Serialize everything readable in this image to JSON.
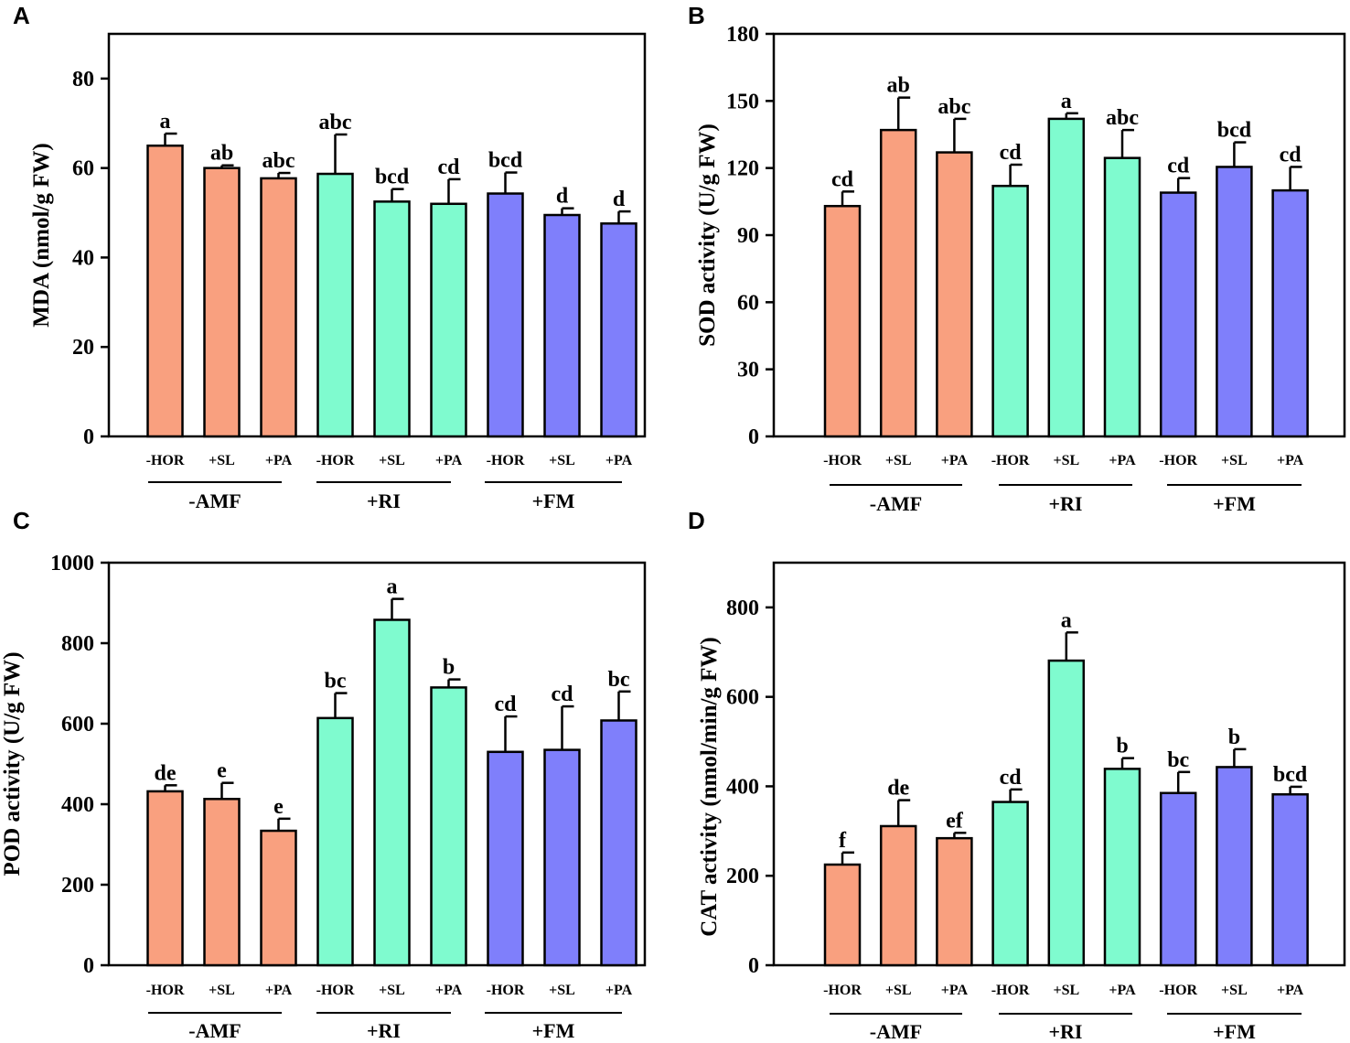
{
  "figure": {
    "colors": {
      "-AMF": "#f9a07f",
      "+RI": "#7ffbcf",
      "+FM": "#7f7ffb",
      "edge": "#000000"
    }
  },
  "chart_data": [
    {
      "panel": "A",
      "type": "bar",
      "ylabel": "MDA (nmol/g FW)",
      "ylim": [
        0,
        90
      ],
      "yticks": [
        0,
        20,
        40,
        60,
        80
      ],
      "categories": [
        "-HOR",
        "+SL",
        "+PA",
        "-HOR",
        "+SL",
        "+PA",
        "-HOR",
        "+SL",
        "+PA"
      ],
      "groups": [
        {
          "name": "-AMF",
          "members": [
            0,
            1,
            2
          ]
        },
        {
          "name": "+RI",
          "members": [
            3,
            4,
            5
          ]
        },
        {
          "name": "+FM",
          "members": [
            6,
            7,
            8
          ]
        }
      ],
      "values": [
        65,
        60,
        57.7,
        58.7,
        52.5,
        52,
        54.3,
        49.5,
        47.6
      ],
      "errors": [
        2.7,
        0.6,
        1.2,
        8.8,
        2.8,
        5.5,
        4.7,
        1.5,
        2.7
      ],
      "significance": [
        "a",
        "ab",
        "abc",
        "abc",
        "bcd",
        "cd",
        "bcd",
        "d",
        "d"
      ]
    },
    {
      "panel": "B",
      "type": "bar",
      "ylabel": "SOD activity (U/g FW)",
      "ylim": [
        0,
        180
      ],
      "yticks": [
        0,
        30,
        60,
        90,
        120,
        150,
        180
      ],
      "categories": [
        "-HOR",
        "+SL",
        "+PA",
        "-HOR",
        "+SL",
        "+PA",
        "-HOR",
        "+SL",
        "+PA"
      ],
      "groups": [
        {
          "name": "-AMF",
          "members": [
            0,
            1,
            2
          ]
        },
        {
          "name": "+RI",
          "members": [
            3,
            4,
            5
          ]
        },
        {
          "name": "+FM",
          "members": [
            6,
            7,
            8
          ]
        }
      ],
      "values": [
        103,
        137,
        127,
        112,
        142,
        124.5,
        109,
        120.5,
        110
      ],
      "errors": [
        6.5,
        14.5,
        15,
        9.5,
        2.5,
        12.5,
        6.5,
        11,
        10.5
      ],
      "significance": [
        "cd",
        "ab",
        "abc",
        "cd",
        "a",
        "abc",
        "cd",
        "bcd",
        "cd"
      ]
    },
    {
      "panel": "C",
      "type": "bar",
      "ylabel": "POD activity (U/g FW)",
      "ylim": [
        0,
        1000
      ],
      "yticks": [
        0,
        200,
        400,
        600,
        800,
        1000
      ],
      "categories": [
        "-HOR",
        "+SL",
        "+PA",
        "-HOR",
        "+SL",
        "+PA",
        "-HOR",
        "+SL",
        "+PA"
      ],
      "groups": [
        {
          "name": "-AMF",
          "members": [
            0,
            1,
            2
          ]
        },
        {
          "name": "+RI",
          "members": [
            3,
            4,
            5
          ]
        },
        {
          "name": "+FM",
          "members": [
            6,
            7,
            8
          ]
        }
      ],
      "values": [
        432,
        413,
        334,
        614,
        858,
        690,
        530,
        535,
        608
      ],
      "errors": [
        15,
        40,
        30,
        62,
        52,
        20,
        88,
        108,
        72
      ],
      "significance": [
        "de",
        "e",
        "e",
        "bc",
        "a",
        "b",
        "cd",
        "cd",
        "bc"
      ]
    },
    {
      "panel": "D",
      "type": "bar",
      "ylabel": "CAT activity (nmol/min/g FW)",
      "ylim": [
        0,
        900
      ],
      "yticks": [
        0,
        200,
        400,
        600,
        800
      ],
      "categories": [
        "-HOR",
        "+SL",
        "+PA",
        "-HOR",
        "+SL",
        "+PA",
        "-HOR",
        "+SL",
        "+PA"
      ],
      "groups": [
        {
          "name": "-AMF",
          "members": [
            0,
            1,
            2
          ]
        },
        {
          "name": "+RI",
          "members": [
            3,
            4,
            5
          ]
        },
        {
          "name": "+FM",
          "members": [
            6,
            7,
            8
          ]
        }
      ],
      "values": [
        225,
        311,
        284,
        365,
        681,
        439,
        385,
        443,
        382
      ],
      "errors": [
        27,
        58,
        12,
        28,
        63,
        24,
        47,
        40,
        17
      ],
      "significance": [
        "f",
        "de",
        "ef",
        "cd",
        "a",
        "b",
        "bc",
        "b",
        "bcd"
      ]
    }
  ]
}
